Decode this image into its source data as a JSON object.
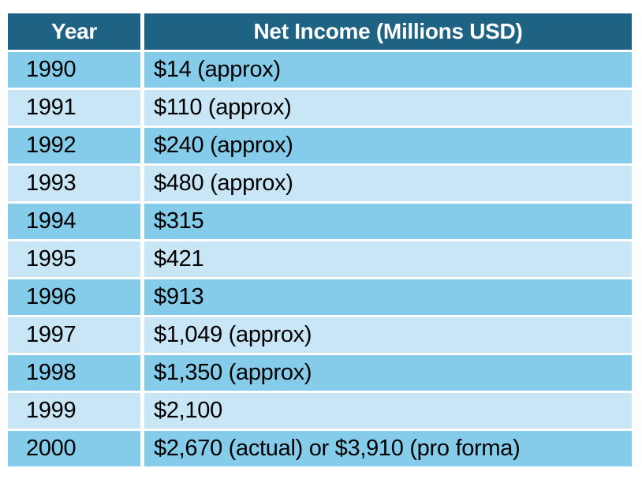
{
  "table": {
    "columns": [
      {
        "id": "year",
        "label": "Year"
      },
      {
        "id": "net_income",
        "label": "Net Income (Millions USD)"
      }
    ],
    "rows": [
      {
        "year": "1990",
        "net_income": "$14 (approx)"
      },
      {
        "year": "1991",
        "net_income": "$110 (approx)"
      },
      {
        "year": "1992",
        "net_income": "$240 (approx)"
      },
      {
        "year": "1993",
        "net_income": "$480 (approx)"
      },
      {
        "year": "1994",
        "net_income": "$315"
      },
      {
        "year": "1995",
        "net_income": "$421"
      },
      {
        "year": "1996",
        "net_income": "$913"
      },
      {
        "year": "1997",
        "net_income": "$1,049 (approx)"
      },
      {
        "year": "1998",
        "net_income": "$1,350 (approx)"
      },
      {
        "year": "1999",
        "net_income": "$2,100"
      },
      {
        "year": "2000",
        "net_income": "$2,670 (actual) or $3,910 (pro forma)"
      }
    ]
  },
  "colors": {
    "page_bg": "#FFFFFF",
    "header_bg": "#1F6384",
    "header_text": "#FFFFFF",
    "row_odd_bg": "#84CCE9",
    "row_even_bg": "#C8E6F5",
    "divider": "#FFFFFF",
    "cell_text": "#000000"
  },
  "chart_data": {
    "type": "table",
    "title": "Net Income (Millions USD)",
    "columns": [
      "Year",
      "Net Income (Millions USD)"
    ],
    "records": [
      {
        "year": 1990,
        "net_income_musd": 14,
        "qualifier": "approx"
      },
      {
        "year": 1991,
        "net_income_musd": 110,
        "qualifier": "approx"
      },
      {
        "year": 1992,
        "net_income_musd": 240,
        "qualifier": "approx"
      },
      {
        "year": 1993,
        "net_income_musd": 480,
        "qualifier": "approx"
      },
      {
        "year": 1994,
        "net_income_musd": 315,
        "qualifier": null
      },
      {
        "year": 1995,
        "net_income_musd": 421,
        "qualifier": null
      },
      {
        "year": 1996,
        "net_income_musd": 913,
        "qualifier": null
      },
      {
        "year": 1997,
        "net_income_musd": 1049,
        "qualifier": "approx"
      },
      {
        "year": 1998,
        "net_income_musd": 1350,
        "qualifier": "approx"
      },
      {
        "year": 1999,
        "net_income_musd": 2100,
        "qualifier": null
      },
      {
        "year": 2000,
        "net_income_musd": 2670,
        "qualifier": "actual",
        "net_income_pro_forma_musd": 3910
      }
    ],
    "layout": {
      "header_row": true,
      "zebra_striping": true,
      "grid": "white gaps between rows and columns"
    }
  }
}
